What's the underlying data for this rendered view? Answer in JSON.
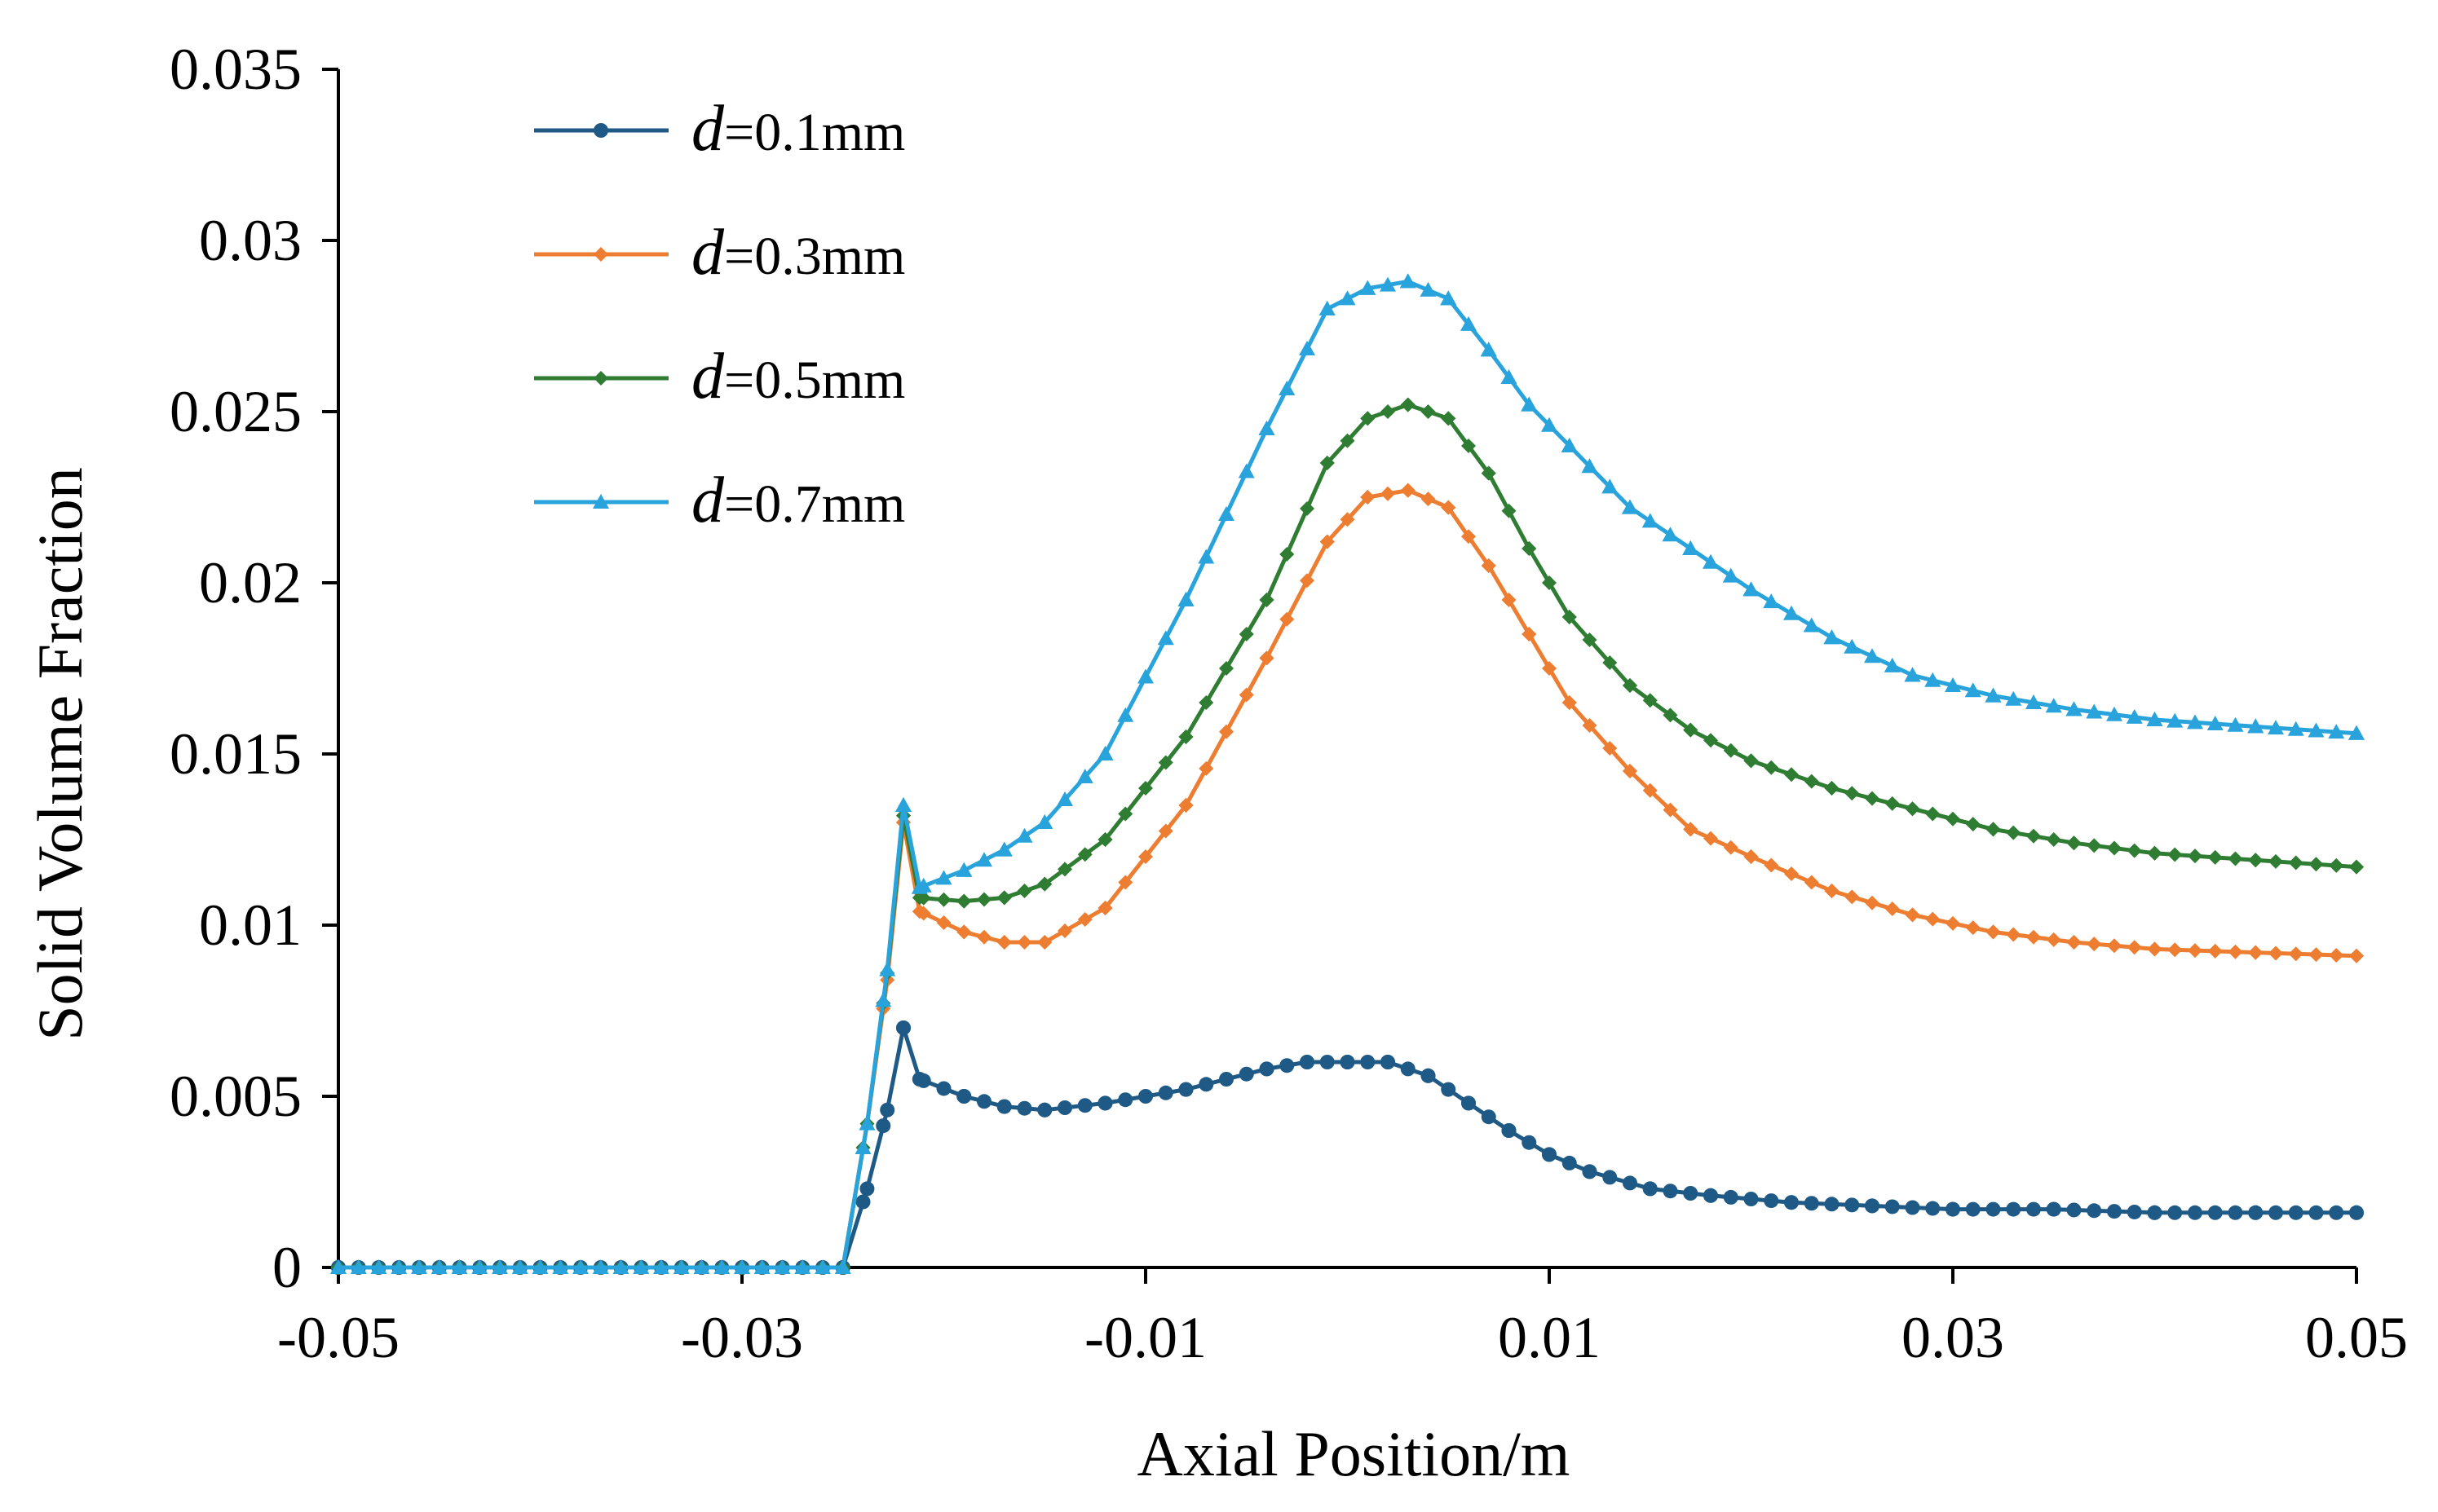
{
  "chart_data": {
    "type": "line",
    "title": "",
    "xlabel": "Axial Position/m",
    "ylabel": "Solid Volume Fraction",
    "xlim": [
      -0.05,
      0.05
    ],
    "ylim": [
      0,
      0.035
    ],
    "xticks": [
      -0.05,
      -0.03,
      -0.01,
      0.01,
      0.03,
      0.05
    ],
    "xtick_labels": [
      "-0.05",
      "-0.03",
      "-0.01",
      "0.01",
      "0.03",
      "0.05"
    ],
    "yticks": [
      0,
      0.005,
      0.01,
      0.015,
      0.02,
      0.025,
      0.03,
      0.035
    ],
    "ytick_labels": [
      "0",
      "0.005",
      "0.01",
      "0.015",
      "0.02",
      "0.025",
      "0.03",
      "0.035"
    ],
    "grid": false,
    "legend_position": "top-left",
    "series": [
      {
        "name": "d=0.1mm",
        "name_var": "d",
        "name_rest": "=0.1mm",
        "color": "#1f5a86",
        "marker": "circle",
        "points": [
          [
            -0.05,
            0
          ],
          [
            -0.03,
            0
          ],
          [
            -0.025,
            0
          ],
          [
            -0.0238,
            0.0023
          ],
          [
            -0.0228,
            0.0046
          ],
          [
            -0.022,
            0.007
          ],
          [
            -0.0212,
            0.0055
          ],
          [
            -0.019,
            0.005
          ],
          [
            -0.017,
            0.0047
          ],
          [
            -0.015,
            0.0046
          ],
          [
            -0.012,
            0.0048
          ],
          [
            -0.008,
            0.0052
          ],
          [
            -0.004,
            0.0058
          ],
          [
            -0.002,
            0.006
          ],
          [
            0.0,
            0.006
          ],
          [
            0.002,
            0.006
          ],
          [
            0.004,
            0.0056
          ],
          [
            0.006,
            0.0048
          ],
          [
            0.008,
            0.004
          ],
          [
            0.01,
            0.0033
          ],
          [
            0.012,
            0.0028
          ],
          [
            0.015,
            0.0023
          ],
          [
            0.018,
            0.0021
          ],
          [
            0.022,
            0.0019
          ],
          [
            0.026,
            0.0018
          ],
          [
            0.03,
            0.0017
          ],
          [
            0.035,
            0.0017
          ],
          [
            0.04,
            0.0016
          ],
          [
            0.045,
            0.0016
          ],
          [
            0.05,
            0.0016
          ]
        ]
      },
      {
        "name": "d=0.3mm",
        "name_var": "d",
        "name_rest": "=0.3mm",
        "color": "#ed7d31",
        "marker": "diamond",
        "points": [
          [
            -0.05,
            0
          ],
          [
            -0.03,
            0
          ],
          [
            -0.025,
            0
          ],
          [
            -0.0238,
            0.0042
          ],
          [
            -0.0228,
            0.0084
          ],
          [
            -0.022,
            0.013
          ],
          [
            -0.0212,
            0.0104
          ],
          [
            -0.019,
            0.0098
          ],
          [
            -0.017,
            0.0095
          ],
          [
            -0.015,
            0.0095
          ],
          [
            -0.012,
            0.0105
          ],
          [
            -0.008,
            0.0135
          ],
          [
            -0.004,
            0.0178
          ],
          [
            -0.001,
            0.0212
          ],
          [
            0.001,
            0.0225
          ],
          [
            0.003,
            0.0227
          ],
          [
            0.005,
            0.0222
          ],
          [
            0.007,
            0.0205
          ],
          [
            0.009,
            0.0185
          ],
          [
            0.011,
            0.0165
          ],
          [
            0.014,
            0.0145
          ],
          [
            0.017,
            0.0128
          ],
          [
            0.02,
            0.012
          ],
          [
            0.024,
            0.011
          ],
          [
            0.028,
            0.0103
          ],
          [
            0.032,
            0.0098
          ],
          [
            0.036,
            0.0095
          ],
          [
            0.04,
            0.0093
          ],
          [
            0.045,
            0.0092
          ],
          [
            0.05,
            0.0091
          ]
        ]
      },
      {
        "name": "d=0.5mm",
        "name_var": "d",
        "name_rest": "=0.5mm",
        "color": "#2e7d32",
        "marker": "diamond",
        "points": [
          [
            -0.05,
            0
          ],
          [
            -0.03,
            0
          ],
          [
            -0.025,
            0
          ],
          [
            -0.0238,
            0.0042
          ],
          [
            -0.0228,
            0.0086
          ],
          [
            -0.022,
            0.0132
          ],
          [
            -0.0212,
            0.0108
          ],
          [
            -0.019,
            0.0107
          ],
          [
            -0.017,
            0.0108
          ],
          [
            -0.015,
            0.0112
          ],
          [
            -0.012,
            0.0125
          ],
          [
            -0.008,
            0.0155
          ],
          [
            -0.004,
            0.0195
          ],
          [
            -0.001,
            0.0235
          ],
          [
            0.001,
            0.0248
          ],
          [
            0.003,
            0.0252
          ],
          [
            0.005,
            0.0248
          ],
          [
            0.007,
            0.0232
          ],
          [
            0.009,
            0.021
          ],
          [
            0.011,
            0.019
          ],
          [
            0.014,
            0.017
          ],
          [
            0.017,
            0.0157
          ],
          [
            0.02,
            0.0148
          ],
          [
            0.024,
            0.014
          ],
          [
            0.028,
            0.0134
          ],
          [
            0.032,
            0.0128
          ],
          [
            0.036,
            0.0124
          ],
          [
            0.04,
            0.0121
          ],
          [
            0.045,
            0.0119
          ],
          [
            0.05,
            0.0117
          ]
        ]
      },
      {
        "name": "d=0.7mm",
        "name_var": "d",
        "name_rest": "=0.7mm",
        "color": "#29a3dc",
        "marker": "triangle",
        "points": [
          [
            -0.05,
            0
          ],
          [
            -0.03,
            0
          ],
          [
            -0.025,
            0
          ],
          [
            -0.0238,
            0.0042
          ],
          [
            -0.0228,
            0.0087
          ],
          [
            -0.022,
            0.0135
          ],
          [
            -0.0212,
            0.0111
          ],
          [
            -0.019,
            0.0116
          ],
          [
            -0.017,
            0.0122
          ],
          [
            -0.015,
            0.013
          ],
          [
            -0.012,
            0.015
          ],
          [
            -0.008,
            0.0195
          ],
          [
            -0.004,
            0.0245
          ],
          [
            -0.001,
            0.028
          ],
          [
            0.001,
            0.0286
          ],
          [
            0.003,
            0.0288
          ],
          [
            0.005,
            0.0283
          ],
          [
            0.007,
            0.0268
          ],
          [
            0.009,
            0.0252
          ],
          [
            0.011,
            0.024
          ],
          [
            0.014,
            0.0222
          ],
          [
            0.017,
            0.021
          ],
          [
            0.02,
            0.0198
          ],
          [
            0.024,
            0.0184
          ],
          [
            0.028,
            0.0173
          ],
          [
            0.032,
            0.0167
          ],
          [
            0.036,
            0.0163
          ],
          [
            0.04,
            0.016
          ],
          [
            0.045,
            0.0158
          ],
          [
            0.05,
            0.0156
          ]
        ]
      }
    ]
  }
}
